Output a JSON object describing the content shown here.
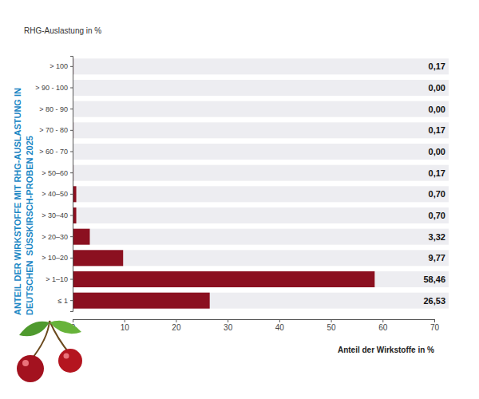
{
  "chart_data": {
    "type": "bar",
    "orientation": "horizontal",
    "title": "ANTEIL DER WIRKSTOFFE MIT RHG-AUSLASTUNG IN DEUTSCHEN  SÜSSKIRSCH-PROBEN 2025",
    "y_label": "RHG-Auslastung in %",
    "x_label": "Anteil der Wirkstoffe in %",
    "categories": [
      "> 100",
      "> 90 - 100",
      "> 80 - 90",
      "> 70 - 80",
      "> 60 - 70",
      "> 50–60",
      "> 40–50",
      "> 30–40",
      "> 20–30",
      "> 10–20",
      "> 1–10",
      "≤ 1"
    ],
    "values": [
      0.17,
      0,
      0,
      0.17,
      0,
      0.17,
      0.7,
      0.7,
      3.32,
      9.77,
      58.46,
      26.53
    ],
    "value_labels": [
      "0,17",
      "0,00",
      "0,00",
      "0,17",
      "0,00",
      "0,17",
      "0,70",
      "0,70",
      "3,32",
      "9,77",
      "58,46",
      "26,53"
    ],
    "data_labels": true,
    "color": "#8b1020",
    "xlim": [
      0,
      70
    ],
    "xticks": [
      0,
      10,
      20,
      30,
      40,
      50,
      60,
      70
    ],
    "grid": false
  }
}
